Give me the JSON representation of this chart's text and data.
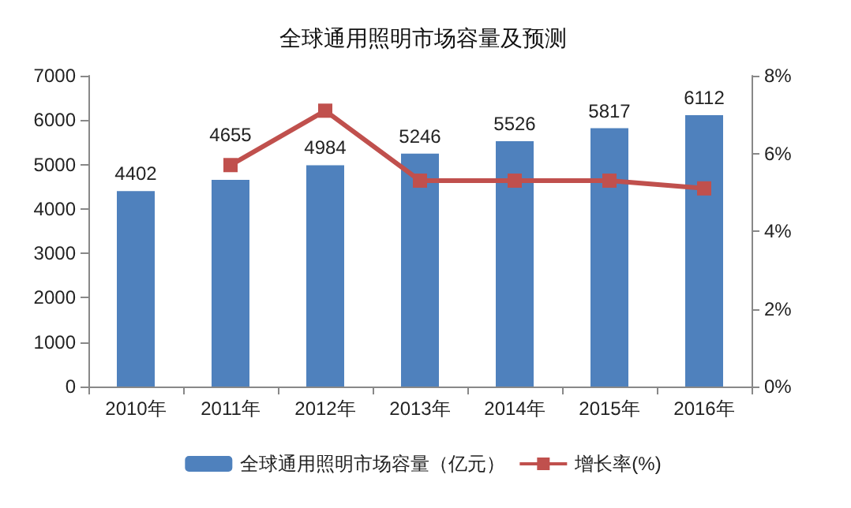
{
  "chart_data": {
    "type": "bar",
    "title": "全球通用照明市场容量及预测",
    "categories": [
      "2010年",
      "2011年",
      "2012年",
      "2013年",
      "2014年",
      "2015年",
      "2016年"
    ],
    "series": [
      {
        "name": "全球通用照明市场容量（亿元）",
        "color": "#4f81bd",
        "values": [
          4402,
          4655,
          4984,
          5246,
          5526,
          5817,
          6112
        ],
        "value_labels": [
          "4402",
          "4655",
          "4984",
          "5246",
          "5526",
          "5817",
          "6112"
        ]
      },
      {
        "name": "增长率(%)",
        "type": "line",
        "axis": "y2",
        "color": "#c0504d",
        "marker": "square",
        "values": [
          null,
          5.7,
          7.1,
          5.3,
          5.3,
          5.3,
          5.1
        ]
      }
    ],
    "ylim": [
      0,
      7000
    ],
    "yticks": [
      0,
      1000,
      2000,
      3000,
      4000,
      5000,
      6000,
      7000
    ],
    "y2lim": [
      0,
      8
    ],
    "y2ticks": [
      {
        "value": 0,
        "label": "0%"
      },
      {
        "value": 2,
        "label": "2%"
      },
      {
        "value": 4,
        "label": "4%"
      },
      {
        "value": 6,
        "label": "6%"
      },
      {
        "value": 8,
        "label": "8%"
      }
    ],
    "grid": false,
    "legend": "bottom"
  }
}
